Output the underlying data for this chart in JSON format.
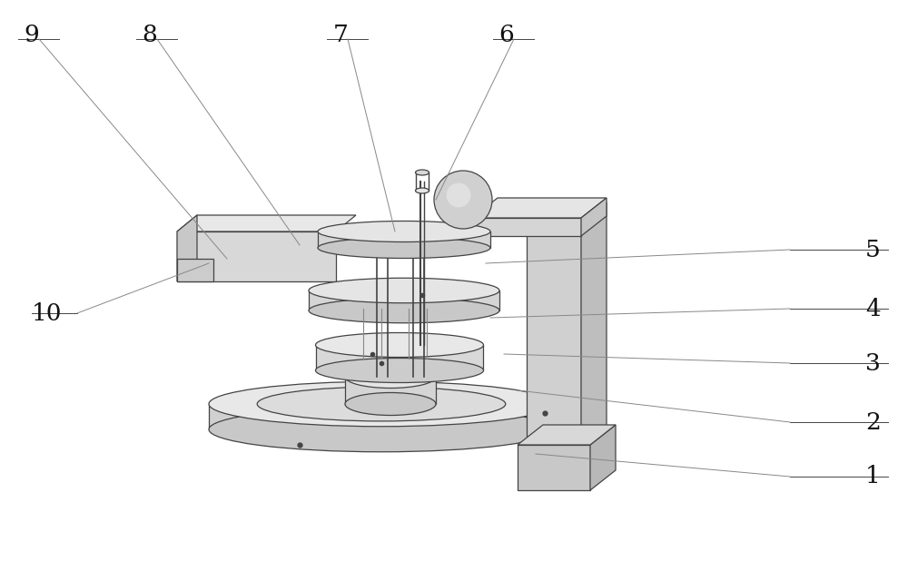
{
  "bg_color": "#ffffff",
  "line_color": "#666666",
  "dark_line": "#444444",
  "label_color": "#111111",
  "label_fontsize": 19,
  "label_fontfamily": "serif",
  "figsize": [
    10.0,
    6.4
  ],
  "dpi": 100
}
